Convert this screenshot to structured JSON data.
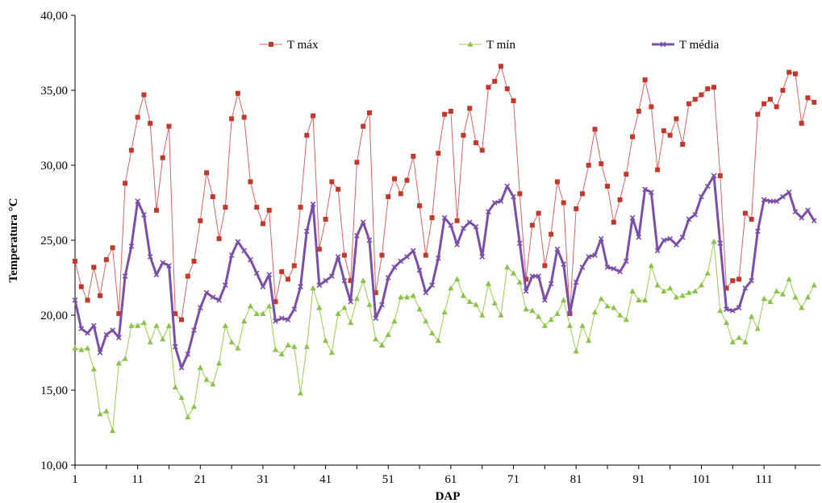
{
  "chart_data": {
    "type": "line",
    "title": "",
    "xlabel": "DAP",
    "ylabel": "Temperatura °C",
    "ylim": [
      10,
      40
    ],
    "xlim": [
      1,
      120
    ],
    "y_ticks": [
      "10,00",
      "15,00",
      "20,00",
      "25,00",
      "30,00",
      "35,00",
      "40,00"
    ],
    "x_ticks": [
      "1",
      "11",
      "21",
      "31",
      "41",
      "51",
      "61",
      "71",
      "81",
      "91",
      "101",
      "111"
    ],
    "grid": false,
    "legend_position": "top",
    "series": [
      {
        "name": "T máx",
        "color": "#e06060",
        "marker": "square",
        "values": [
          23.6,
          21.9,
          21.0,
          23.2,
          21.3,
          23.7,
          24.5,
          20.1,
          28.8,
          31.0,
          33.2,
          34.7,
          32.8,
          27.0,
          30.5,
          32.6,
          20.1,
          19.7,
          22.6,
          23.6,
          26.3,
          29.5,
          27.9,
          25.1,
          27.2,
          33.1,
          34.8,
          33.2,
          28.9,
          27.2,
          26.1,
          27.0,
          20.9,
          22.9,
          22.4,
          23.3,
          27.2,
          32.0,
          33.3,
          24.4,
          26.4,
          28.9,
          28.4,
          24.0,
          22.3,
          30.2,
          32.6,
          33.5,
          21.5,
          24.0,
          27.9,
          29.1,
          28.1,
          29.0,
          30.6,
          27.3,
          24.0,
          26.5,
          30.8,
          33.4,
          33.6,
          26.3,
          32.0,
          33.8,
          31.5,
          31.0,
          35.2,
          35.6,
          36.6,
          35.1,
          34.3,
          28.1,
          22.4,
          26.0,
          26.8,
          23.3,
          25.4,
          28.9,
          27.5,
          20.1,
          27.1,
          28.1,
          30.0,
          32.4,
          30.1,
          28.6,
          26.2,
          27.7,
          29.4,
          31.9,
          33.6,
          35.7,
          33.9,
          29.7,
          32.3,
          32.0,
          33.1,
          31.4,
          34.1,
          34.4,
          34.7,
          35.1,
          35.2,
          29.3,
          21.8,
          22.3,
          22.4,
          26.8,
          26.4,
          33.4,
          34.1,
          34.4,
          33.9,
          35.0,
          36.2,
          36.1,
          32.8,
          34.5,
          34.2
        ]
      },
      {
        "name": "T mín",
        "color": "#9acd50",
        "marker": "triangle",
        "values": [
          17.8,
          17.7,
          17.8,
          16.4,
          13.4,
          13.6,
          12.3,
          16.8,
          17.1,
          19.3,
          19.3,
          19.5,
          18.2,
          19.3,
          18.4,
          19.3,
          15.2,
          14.5,
          13.2,
          13.9,
          16.5,
          15.7,
          15.4,
          16.8,
          19.3,
          18.2,
          17.8,
          19.6,
          20.6,
          20.1,
          20.1,
          20.6,
          17.7,
          17.4,
          18.0,
          17.9,
          14.8,
          17.9,
          21.8,
          20.5,
          18.3,
          17.5,
          20.1,
          20.5,
          19.5,
          21.1,
          22.3,
          20.7,
          18.4,
          18.0,
          18.7,
          19.6,
          21.2,
          21.2,
          21.3,
          20.4,
          19.6,
          18.8,
          18.3,
          20.2,
          21.8,
          22.4,
          21.3,
          20.9,
          20.7,
          20.0,
          22.1,
          20.8,
          20.0,
          23.2,
          22.8,
          22.2,
          20.4,
          20.3,
          19.9,
          19.3,
          19.7,
          20.1,
          21.0,
          19.3,
          17.6,
          19.3,
          18.3,
          20.2,
          21.1,
          20.6,
          20.5,
          20.0,
          19.7,
          21.6,
          21.0,
          21.0,
          23.3,
          22.0,
          21.6,
          21.8,
          21.2,
          21.3,
          21.5,
          21.6,
          22.0,
          22.8,
          24.9,
          20.3,
          19.5,
          18.2,
          18.5,
          18.2,
          19.9,
          19.1,
          21.1,
          20.9,
          21.6,
          21.4,
          22.4,
          21.2,
          20.5,
          21.2,
          22.0
        ]
      },
      {
        "name": "T média",
        "color": "#7b4fa8",
        "marker": "x",
        "values": [
          21.0,
          19.1,
          18.8,
          19.3,
          17.5,
          18.7,
          19.0,
          18.5,
          22.6,
          24.6,
          27.6,
          26.7,
          23.9,
          22.7,
          23.5,
          23.3,
          17.9,
          16.5,
          17.4,
          19.0,
          20.5,
          21.5,
          21.2,
          21.0,
          22.0,
          24.0,
          24.9,
          24.3,
          23.7,
          22.8,
          21.9,
          22.7,
          19.6,
          19.8,
          19.7,
          20.4,
          21.9,
          25.6,
          27.4,
          22.0,
          22.3,
          22.6,
          23.9,
          22.3,
          20.9,
          25.3,
          26.2,
          25.0,
          19.8,
          20.7,
          22.5,
          23.2,
          23.6,
          23.9,
          24.3,
          23.0,
          21.5,
          22.0,
          23.8,
          26.5,
          26.0,
          24.7,
          25.8,
          26.2,
          25.9,
          23.9,
          26.9,
          27.5,
          27.6,
          28.6,
          27.9,
          24.8,
          21.6,
          22.6,
          22.6,
          21.0,
          22.1,
          24.4,
          23.4,
          20.1,
          22.2,
          23.2,
          23.9,
          24.0,
          25.1,
          23.2,
          23.1,
          22.9,
          23.6,
          26.5,
          25.2,
          28.4,
          28.2,
          24.3,
          25.0,
          25.1,
          24.7,
          25.2,
          26.4,
          26.7,
          27.9,
          28.6,
          29.3,
          24.8,
          20.4,
          20.3,
          20.5,
          21.8,
          22.3,
          25.6,
          27.7,
          27.6,
          27.6,
          27.9,
          28.2,
          26.9,
          26.5,
          27.0,
          26.3
        ]
      }
    ]
  }
}
